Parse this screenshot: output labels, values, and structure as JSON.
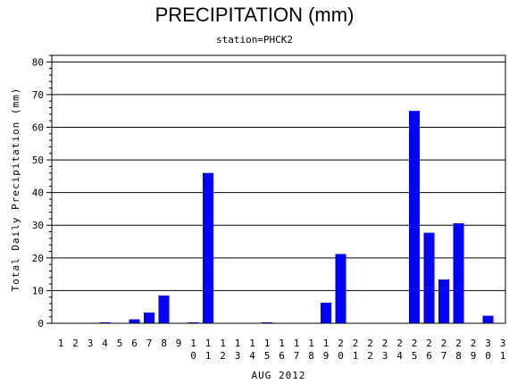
{
  "chart_data": {
    "type": "bar",
    "title": "PRECIPITATION (mm)",
    "subtitle": "station=PHCK2",
    "xlabel": "AUG 2012",
    "ylabel": "Total Daily Precipitation (mm)",
    "ylim": [
      0,
      82
    ],
    "yticks": [
      0,
      10,
      20,
      30,
      40,
      50,
      60,
      70,
      80
    ],
    "grid": true,
    "bar_color": "#0000ff",
    "categories": [
      "1",
      "2",
      "3",
      "4",
      "5",
      "6",
      "7",
      "8",
      "9",
      "10",
      "11",
      "12",
      "13",
      "14",
      "15",
      "16",
      "17",
      "18",
      "19",
      "20",
      "21",
      "22",
      "23",
      "24",
      "25",
      "26",
      "27",
      "28",
      "29",
      "30",
      "31"
    ],
    "values": [
      0,
      0,
      0,
      0.3,
      0,
      1.2,
      3.3,
      8.5,
      0,
      0.3,
      46,
      0,
      0,
      0,
      0.3,
      0,
      0,
      0,
      6.3,
      21.2,
      0,
      0,
      0,
      0,
      65,
      27.7,
      13.4,
      30.6,
      0,
      2.3,
      0
    ]
  }
}
